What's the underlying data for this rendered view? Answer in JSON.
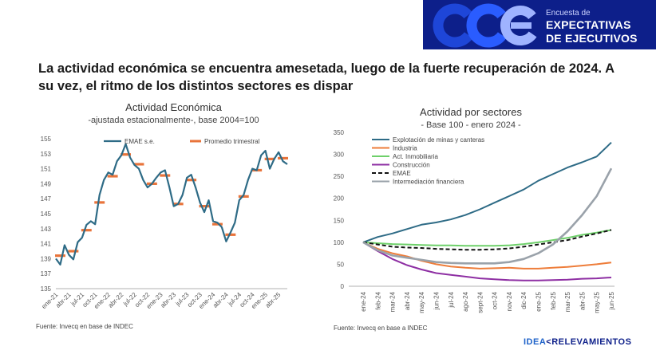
{
  "header": {
    "subtitle": "Encuesta de",
    "title_line1": "EXPECTATIVAS",
    "title_line2": "DE EJECUTIVOS",
    "bg_color": "#0d1f8a"
  },
  "headline": "La actividad económica se encuentra amesetada, luego de la fuerte recuperación de 2024. A su vez, el ritmo de los distintos sectores es dispar",
  "chart_data": [
    {
      "type": "line",
      "title": "Actividad Económica",
      "subtitle": "-ajustada estacionalmente-, base 2004=100",
      "source": "Fuente: Invecq en base de INDEC",
      "ylim": [
        135,
        155
      ],
      "yticks": [
        135,
        137,
        139,
        141,
        143,
        145,
        147,
        149,
        151,
        153,
        155
      ],
      "xtick_labels": [
        "ene-21",
        "abr-21",
        "jul-21",
        "oct-21",
        "ene-22",
        "abr-22",
        "jul-22",
        "oct-22",
        "ene-23",
        "abr-23",
        "jul-23",
        "oct-23",
        "ene-24",
        "abr-24",
        "jul-24",
        "oct-24",
        "ene-25",
        "abr-25"
      ],
      "n_months": 54,
      "series": [
        {
          "name": "EMAE s.e.",
          "color": "#2e6b86",
          "values": [
            139.0,
            138.2,
            140.8,
            139.5,
            138.9,
            141.2,
            141.8,
            143.5,
            144.0,
            143.6,
            147.5,
            149.5,
            150.5,
            150.2,
            152.0,
            152.8,
            154.3,
            152.5,
            151.5,
            151.0,
            149.5,
            148.5,
            149.0,
            149.8,
            150.5,
            150.8,
            148.5,
            146.0,
            146.3,
            147.5,
            149.8,
            150.2,
            148.5,
            146.5,
            145.2,
            146.8,
            144.0,
            143.8,
            143.2,
            141.3,
            142.5,
            143.8,
            146.8,
            147.5,
            149.5,
            151.0,
            150.8,
            152.8,
            153.4,
            151.0,
            152.3,
            153.2,
            152.0,
            151.6
          ]
        },
        {
          "name": "Promedio trimestral",
          "color": "#e8743b",
          "values": [
            139.4,
            139.4,
            139.4,
            140.0,
            140.0,
            140.0,
            142.8,
            142.8,
            142.8,
            146.5,
            146.5,
            146.5,
            150.0,
            150.0,
            150.0,
            152.9,
            152.9,
            152.9,
            151.6,
            151.6,
            151.6,
            149.0,
            149.0,
            149.0,
            150.1,
            150.1,
            150.1,
            146.3,
            146.3,
            146.3,
            149.5,
            149.5,
            149.5,
            146.0,
            146.0,
            146.0,
            143.6,
            143.6,
            143.6,
            142.2,
            142.2,
            142.2,
            147.3,
            147.3,
            147.3,
            150.8,
            150.8,
            150.8,
            152.3,
            152.3,
            152.3,
            152.4,
            152.4,
            152.4
          ]
        }
      ],
      "legend": [
        "EMAE s.e.",
        "Promedio trimestral"
      ]
    },
    {
      "type": "line",
      "title": "Actividad por sectores",
      "subtitle": "- Base 100 - enero 2024 -",
      "source": "Fuente: Invecq en base a INDEC",
      "ylim": [
        0,
        350
      ],
      "yticks": [
        0,
        50,
        100,
        150,
        200,
        250,
        300,
        350
      ],
      "categories": [
        "ene-24",
        "feb-24",
        "mar-24",
        "abr-24",
        "may-24",
        "jun-24",
        "jul-24",
        "ago-24",
        "sept-24",
        "oct-24",
        "nov-24",
        "dic-24",
        "ene-25",
        "feb-25",
        "mar-25",
        "abr-25",
        "may-25",
        "jun-25"
      ],
      "series": [
        {
          "name": "Explotación de minas y canteras",
          "color": "#2e6b86",
          "dash": "",
          "values": [
            100,
            112,
            120,
            130,
            140,
            145,
            152,
            162,
            175,
            190,
            205,
            220,
            240,
            255,
            270,
            282,
            295,
            327
          ]
        },
        {
          "name": "Industria",
          "color": "#ee7d3a",
          "dash": "",
          "values": [
            100,
            85,
            75,
            68,
            58,
            50,
            45,
            42,
            40,
            41,
            42,
            40,
            40,
            42,
            44,
            47,
            50,
            54
          ]
        },
        {
          "name": "Act. Inmobiliaria",
          "color": "#6ed06a",
          "dash": "",
          "values": [
            100,
            98,
            96,
            95,
            94,
            93,
            93,
            92,
            92,
            92,
            93,
            96,
            100,
            105,
            110,
            117,
            122,
            128
          ]
        },
        {
          "name": "Construcción",
          "color": "#8e2fa3",
          "dash": "",
          "values": [
            100,
            80,
            62,
            48,
            38,
            30,
            26,
            22,
            18,
            16,
            14,
            13,
            13,
            14,
            15,
            17,
            18,
            20
          ]
        },
        {
          "name": "EMAE",
          "color": "#111111",
          "dash": "5,3",
          "values": [
            100,
            95,
            90,
            88,
            87,
            85,
            84,
            83,
            83,
            84,
            86,
            90,
            95,
            100,
            105,
            113,
            120,
            128
          ]
        },
        {
          "name": "Intermediación financiera",
          "color": "#9aa2aa",
          "dash": "",
          "values": [
            100,
            82,
            70,
            65,
            60,
            55,
            53,
            52,
            52,
            52,
            55,
            62,
            75,
            95,
            125,
            162,
            205,
            268
          ]
        }
      ]
    }
  ],
  "brand": {
    "part1": "IDEA",
    "part2": "RELEVAMIENTOS"
  }
}
